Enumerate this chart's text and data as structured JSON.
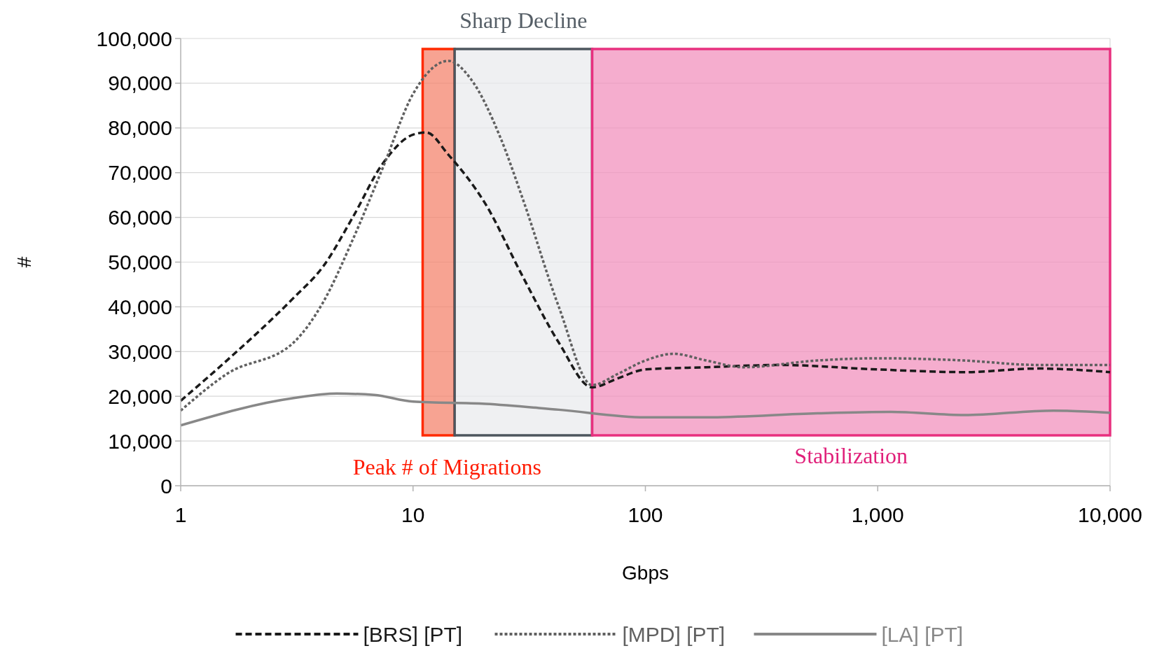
{
  "chart_data": {
    "type": "line",
    "xlabel": "Gbps",
    "ylabel": "#",
    "log": "x",
    "grid": "y",
    "legend": "bottom",
    "xlim": [
      1,
      10000
    ],
    "xticks": [
      1,
      10,
      100,
      {
        "value": 1000,
        "label": "1,000"
      },
      {
        "value": 10000,
        "label": "10,000"
      }
    ],
    "ylim": [
      0,
      100000
    ],
    "yticks": [
      0,
      {
        "value": 10000,
        "label": "10,000"
      },
      {
        "value": 20000,
        "label": "20,000"
      },
      {
        "value": 30000,
        "label": "30,000"
      },
      {
        "value": 40000,
        "label": "40,000"
      },
      {
        "value": 50000,
        "label": "50,000"
      },
      {
        "value": 60000,
        "label": "60,000"
      },
      {
        "value": 70000,
        "label": "70,000"
      },
      {
        "value": 80000,
        "label": "80,000"
      },
      {
        "value": 90000,
        "label": "90,000"
      },
      {
        "value": 100000,
        "label": "100,000"
      }
    ],
    "series": [
      {
        "name": "[BRS] [PT]",
        "color": "#1a1a1a",
        "line_style": "dashed",
        "x": [
          1,
          1.58,
          3.06,
          4.1,
          5.5,
          7.4,
          10,
          11.4,
          14.2,
          20.5,
          29.5,
          42.4,
          59,
          76,
          100,
          183,
          380,
          1000,
          2360,
          4900,
          10000
        ],
        "values": [
          19000,
          28000,
          42000,
          49000,
          60000,
          72000,
          78500,
          79000,
          74000,
          63000,
          47000,
          32000,
          22000,
          24000,
          26000,
          26500,
          27000,
          26000,
          25400,
          26200,
          25400
        ]
      },
      {
        "name": "[MPD] [PT]",
        "color": "#606060",
        "line_style": "dotted",
        "x": [
          1,
          1.58,
          3.06,
          4.1,
          5.5,
          7.4,
          10,
          14.2,
          17.7,
          23.7,
          29.5,
          42.4,
          59,
          76,
          100,
          132,
          183,
          264,
          550,
          1000,
          2360,
          4900,
          10000
        ],
        "values": [
          16800,
          25000,
          32000,
          41000,
          55000,
          71000,
          87600,
          95000,
          91000,
          78000,
          64500,
          40000,
          22500,
          25000,
          28000,
          29500,
          28000,
          26500,
          28000,
          28500,
          28000,
          27000,
          27000
        ]
      },
      {
        "name": "[LA] [PT]",
        "color": "#888888",
        "line_style": "solid",
        "x": [
          1,
          3.06,
          4.7,
          6.8,
          10,
          20.5,
          42.4,
          100,
          183,
          550,
          1140,
          2360,
          5700,
          10000
        ],
        "values": [
          13500,
          19600,
          20600,
          20300,
          18800,
          18300,
          17000,
          15300,
          15300,
          16200,
          16500,
          15800,
          16800,
          16300
        ]
      }
    ],
    "bands": [
      {
        "axis": "x",
        "from": 11,
        "to": 15.1,
        "label": "Peak # of Migrations",
        "color": "#f4846e"
      },
      {
        "axis": "x",
        "from": 15.1,
        "to": 59,
        "label": "Sharp Decline",
        "color": "#e9ebee"
      },
      {
        "axis": "x",
        "from": 59,
        "to": 10000,
        "label": "Stabilization",
        "color": "#f291bd"
      }
    ]
  }
}
